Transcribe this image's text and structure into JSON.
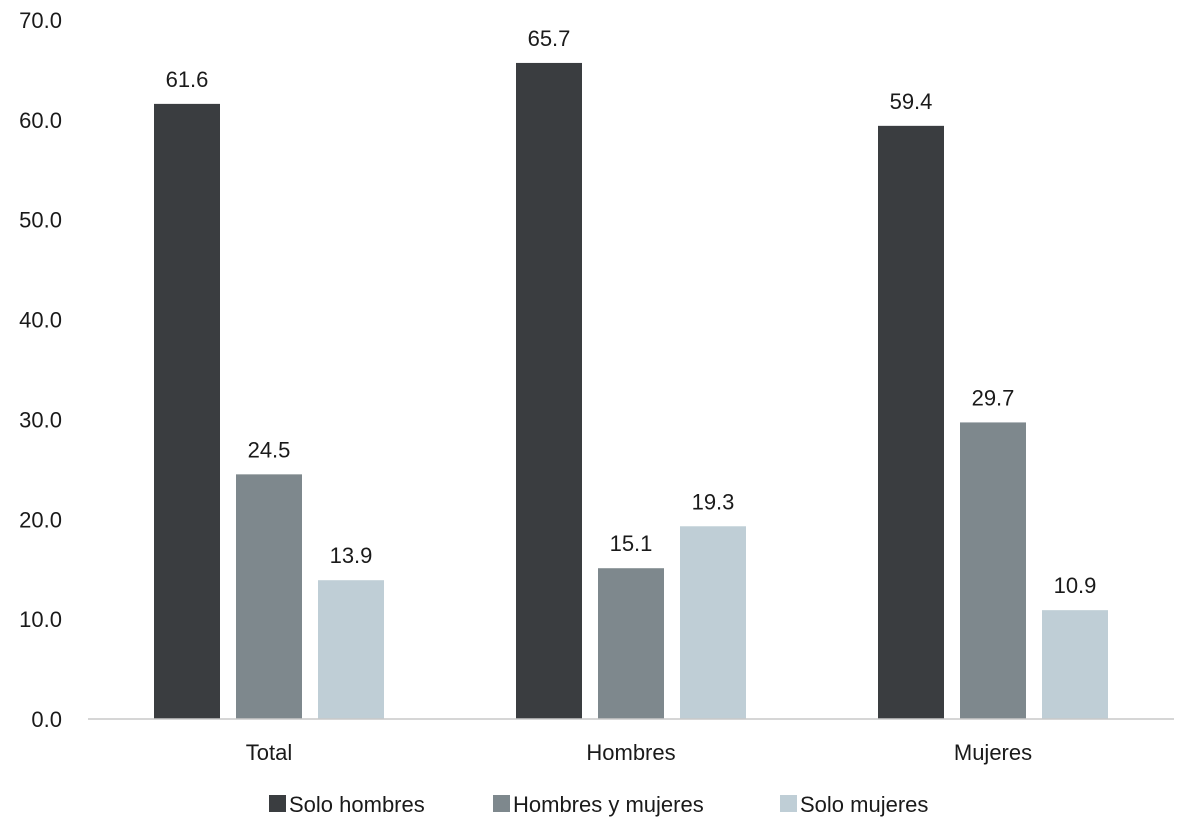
{
  "chart_data": {
    "type": "bar",
    "categories": [
      "Total",
      "Hombres",
      "Mujeres"
    ],
    "series": [
      {
        "name": "Solo hombres",
        "values": [
          61.6,
          65.7,
          59.4
        ],
        "color": "#3a3d40"
      },
      {
        "name": "Hombres y mujeres",
        "values": [
          24.5,
          15.1,
          29.7
        ],
        "color": "#7e888d"
      },
      {
        "name": "Solo mujeres",
        "values": [
          13.9,
          19.3,
          10.9
        ],
        "color": "#bfced6"
      }
    ],
    "value_labels": [
      [
        "61.6",
        "24.5",
        "13.9"
      ],
      [
        "65.7",
        "15.1",
        "19.3"
      ],
      [
        "59.4",
        "29.7",
        "10.9"
      ]
    ],
    "y_ticks": [
      "0.0",
      "10.0",
      "20.0",
      "30.0",
      "40.0",
      "50.0",
      "60.0",
      "70.0"
    ],
    "ylim": [
      0,
      70
    ],
    "grid": false,
    "legend_position": "bottom",
    "title": "",
    "xlabel": "",
    "ylabel": ""
  }
}
